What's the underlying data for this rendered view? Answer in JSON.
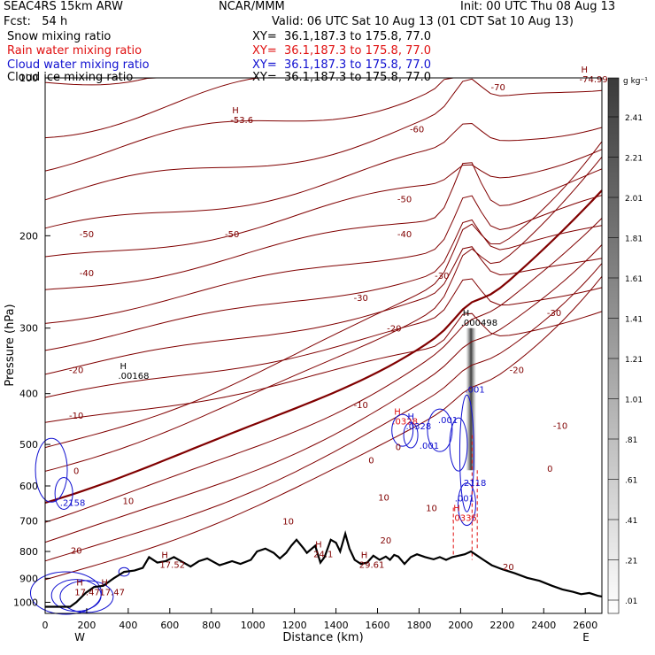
{
  "header": {
    "model": "SEAC4RS 15km ARW",
    "producer": "NCAR/MMM",
    "init": "Init: 00 UTC Thu 08 Aug 13",
    "fcst": "Fcst:   54 h",
    "valid": "Valid: 06 UTC Sat 10 Aug 13 (01 CDT Sat 10 Aug 13)"
  },
  "legend": [
    {
      "label": "Snow mixing ratio",
      "xy": "XY=  36.1,187.3 to 175.8, 77.0",
      "color": "#000000"
    },
    {
      "label": "Rain water mixing ratio",
      "xy": "XY=  36.1,187.3 to 175.8, 77.0",
      "color": "#e01010"
    },
    {
      "label": "Cloud water mixing ratio",
      "xy": "XY=  36.1,187.3 to 175.8, 77.0",
      "color": "#1010d0"
    },
    {
      "label": "Cloud ice mixing ratio",
      "xy": "XY=  36.1,187.3 to 175.8, 77.0",
      "color": "#000000"
    }
  ],
  "colorbar": {
    "unit": "g kg⁻¹",
    "labels": [
      "2.41",
      "2.21",
      "2.01",
      "1.81",
      "1.61",
      "1.41",
      "1.21",
      "1.01",
      ".81",
      ".61",
      ".41",
      ".21",
      ".01"
    ]
  },
  "chart_data": {
    "type": "cross-section",
    "xlabel": "Distance (km)",
    "ylabel": "Pressure (hPa)",
    "xlim": [
      0,
      2680
    ],
    "ylim": [
      1050,
      100
    ],
    "yscale": "log",
    "xticks": [
      "0",
      "200",
      "400",
      "600",
      "800",
      "1000",
      "1200",
      "1400",
      "1600",
      "1800",
      "2000",
      "2200",
      "2400",
      "2600"
    ],
    "yticks": [
      "100",
      "200",
      "300",
      "400",
      "500",
      "600",
      "700",
      "800",
      "900",
      "1000"
    ],
    "endpoints": {
      "left": "W",
      "right": "E"
    },
    "temperature_levels_labeled": [
      "-70",
      "-60",
      "-50",
      "-50",
      "-50",
      "-40",
      "-40",
      "-30",
      "-30",
      "-30",
      "-20",
      "-20",
      "-20",
      "-10",
      "-10",
      "-10",
      "0",
      "0",
      "0",
      "0",
      "10",
      "10",
      "10",
      "10",
      "20",
      "20",
      "20"
    ],
    "terrain_points": [
      [
        0,
        1020
      ],
      [
        60,
        1020
      ],
      [
        120,
        1020
      ],
      [
        150,
        1000
      ],
      [
        195,
        960
      ],
      [
        235,
        935
      ],
      [
        280,
        930
      ],
      [
        330,
        900
      ],
      [
        380,
        875
      ],
      [
        430,
        870
      ],
      [
        470,
        860
      ],
      [
        500,
        820
      ],
      [
        540,
        840
      ],
      [
        580,
        835
      ],
      [
        620,
        820
      ],
      [
        700,
        855
      ],
      [
        740,
        835
      ],
      [
        780,
        825
      ],
      [
        840,
        850
      ],
      [
        900,
        835
      ],
      [
        940,
        845
      ],
      [
        990,
        830
      ],
      [
        1020,
        800
      ],
      [
        1060,
        790
      ],
      [
        1100,
        805
      ],
      [
        1130,
        825
      ],
      [
        1160,
        805
      ],
      [
        1185,
        780
      ],
      [
        1210,
        760
      ],
      [
        1245,
        790
      ],
      [
        1260,
        805
      ],
      [
        1300,
        780
      ],
      [
        1325,
        840
      ],
      [
        1345,
        820
      ],
      [
        1375,
        760
      ],
      [
        1400,
        770
      ],
      [
        1420,
        800
      ],
      [
        1445,
        740
      ],
      [
        1465,
        790
      ],
      [
        1490,
        830
      ],
      [
        1520,
        845
      ],
      [
        1550,
        840
      ],
      [
        1580,
        815
      ],
      [
        1610,
        830
      ],
      [
        1640,
        818
      ],
      [
        1660,
        830
      ],
      [
        1680,
        812
      ],
      [
        1700,
        818
      ],
      [
        1730,
        845
      ],
      [
        1760,
        820
      ],
      [
        1790,
        810
      ],
      [
        1830,
        820
      ],
      [
        1870,
        828
      ],
      [
        1900,
        820
      ],
      [
        1930,
        830
      ],
      [
        1960,
        820
      ],
      [
        1990,
        815
      ],
      [
        2020,
        810
      ],
      [
        2050,
        800
      ],
      [
        2080,
        815
      ],
      [
        2110,
        830
      ],
      [
        2150,
        850
      ],
      [
        2200,
        865
      ],
      [
        2260,
        880
      ],
      [
        2320,
        898
      ],
      [
        2380,
        910
      ],
      [
        2440,
        930
      ],
      [
        2490,
        945
      ],
      [
        2540,
        955
      ],
      [
        2580,
        965
      ],
      [
        2620,
        960
      ],
      [
        2660,
        972
      ],
      [
        2680,
        975
      ]
    ],
    "extrema_labels": [
      {
        "x": 900,
        "p": 122,
        "h": "H",
        "value": "-53.6",
        "color": "#800000"
      },
      {
        "x": 2580,
        "p": 102,
        "h": "H",
        "value": "-74.99",
        "color": "#800000"
      },
      {
        "x": 2010,
        "p": 297,
        "h": "H",
        "value": ".000498",
        "color": "#000000"
      },
      {
        "x": 360,
        "p": 375,
        "h": "H",
        "value": ".00168",
        "color": "#000000"
      },
      {
        "x": 1680,
        "p": 458,
        "h": "H",
        "value": ".0328",
        "color": "#e01010"
      },
      {
        "x": 1745,
        "p": 468,
        "h": "H",
        "value": ".0328",
        "color": "#1010d0"
      },
      {
        "x": 2030,
        "p": 398,
        "h": "",
        "value": ".001",
        "color": "#1010d0"
      },
      {
        "x": 1900,
        "p": 455,
        "h": "",
        "value": ".001",
        "color": "#1010d0"
      },
      {
        "x": 1810,
        "p": 510,
        "h": "",
        "value": ".001",
        "color": "#1010d0"
      },
      {
        "x": 2010,
        "p": 600,
        "h": "",
        "value": ".2118",
        "color": "#1010d0"
      },
      {
        "x": 1980,
        "p": 642,
        "h": "",
        "value": ".001",
        "color": "#1010d0"
      },
      {
        "x": 1965,
        "p": 700,
        "h": "H",
        "value": ".0335",
        "color": "#e01010"
      },
      {
        "x": 80,
        "p": 655,
        "h": "",
        "value": ".2158",
        "color": "#1010d0"
      },
      {
        "x": 560,
        "p": 860,
        "h": "H",
        "value": "17.52",
        "color": "#800000"
      },
      {
        "x": 1300,
        "p": 820,
        "h": "H",
        "value": "24.1",
        "color": "#800000"
      },
      {
        "x": 1520,
        "p": 860,
        "h": "H",
        "value": "29.61",
        "color": "#800000"
      },
      {
        "x": 150,
        "p": 970,
        "h": "H",
        "value": "17.47",
        "color": "#800000"
      },
      {
        "x": 270,
        "p": 970,
        "h": "H",
        "value": "17.47",
        "color": "#800000"
      }
    ]
  }
}
